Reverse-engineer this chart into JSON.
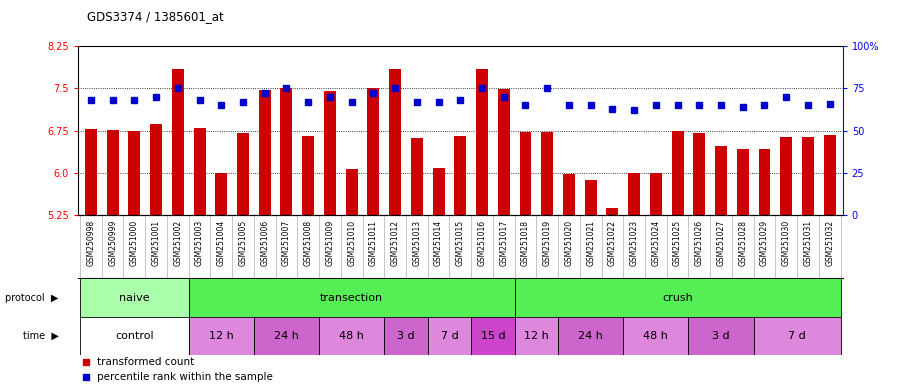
{
  "title": "GDS3374 / 1385601_at",
  "samples": [
    "GSM250998",
    "GSM250999",
    "GSM251000",
    "GSM251001",
    "GSM251002",
    "GSM251003",
    "GSM251004",
    "GSM251005",
    "GSM251006",
    "GSM251007",
    "GSM251008",
    "GSM251009",
    "GSM251010",
    "GSM251011",
    "GSM251012",
    "GSM251013",
    "GSM251014",
    "GSM251015",
    "GSM251016",
    "GSM251017",
    "GSM251018",
    "GSM251019",
    "GSM251020",
    "GSM251021",
    "GSM251022",
    "GSM251023",
    "GSM251024",
    "GSM251025",
    "GSM251026",
    "GSM251027",
    "GSM251028",
    "GSM251029",
    "GSM251030",
    "GSM251031",
    "GSM251032"
  ],
  "bar_values": [
    6.78,
    6.76,
    6.75,
    6.87,
    7.85,
    6.8,
    5.99,
    6.7,
    7.47,
    7.5,
    6.65,
    7.45,
    6.07,
    7.5,
    7.85,
    6.62,
    6.08,
    6.65,
    7.85,
    7.48,
    6.73,
    6.73,
    5.97,
    5.87,
    5.37,
    5.99,
    6.0,
    6.75,
    6.7,
    6.47,
    6.42,
    6.42,
    6.63,
    6.63,
    6.68
  ],
  "blue_values": [
    68,
    68,
    68,
    70,
    75,
    68,
    65,
    67,
    72,
    75,
    67,
    70,
    67,
    72,
    75,
    67,
    67,
    68,
    75,
    70,
    65,
    75,
    65,
    65,
    63,
    62,
    65,
    65,
    65,
    65,
    64,
    65,
    70,
    65,
    66
  ],
  "ylim_left": [
    5.25,
    8.25
  ],
  "ylim_right": [
    0,
    100
  ],
  "yticks_left": [
    5.25,
    6.0,
    6.75,
    7.5,
    8.25
  ],
  "yticks_right": [
    0,
    25,
    50,
    75,
    100
  ],
  "ytick_labels_right": [
    "0",
    "25",
    "50",
    "75",
    "100%"
  ],
  "bar_color": "#cc0000",
  "dot_color": "#0000cc",
  "bg_color": "#ffffff",
  "xlabel_bg": "#cccccc",
  "proto_groups": [
    {
      "label": "naive",
      "start": 0,
      "end": 4,
      "color": "#aaffaa"
    },
    {
      "label": "transection",
      "start": 5,
      "end": 19,
      "color": "#55ee55"
    },
    {
      "label": "crush",
      "start": 20,
      "end": 34,
      "color": "#55ee55"
    }
  ],
  "time_groups": [
    {
      "label": "control",
      "start": 0,
      "end": 4,
      "color": "#ffffff"
    },
    {
      "label": "12 h",
      "start": 5,
      "end": 7,
      "color": "#dd88dd"
    },
    {
      "label": "24 h",
      "start": 8,
      "end": 10,
      "color": "#cc66cc"
    },
    {
      "label": "48 h",
      "start": 11,
      "end": 13,
      "color": "#dd88dd"
    },
    {
      "label": "3 d",
      "start": 14,
      "end": 15,
      "color": "#cc66cc"
    },
    {
      "label": "7 d",
      "start": 16,
      "end": 17,
      "color": "#dd88dd"
    },
    {
      "label": "15 d",
      "start": 18,
      "end": 19,
      "color": "#cc44cc"
    },
    {
      "label": "12 h",
      "start": 20,
      "end": 21,
      "color": "#dd88dd"
    },
    {
      "label": "24 h",
      "start": 22,
      "end": 24,
      "color": "#cc66cc"
    },
    {
      "label": "48 h",
      "start": 25,
      "end": 27,
      "color": "#dd88dd"
    },
    {
      "label": "3 d",
      "start": 28,
      "end": 30,
      "color": "#cc66cc"
    },
    {
      "label": "7 d",
      "start": 31,
      "end": 34,
      "color": "#dd88dd"
    }
  ]
}
